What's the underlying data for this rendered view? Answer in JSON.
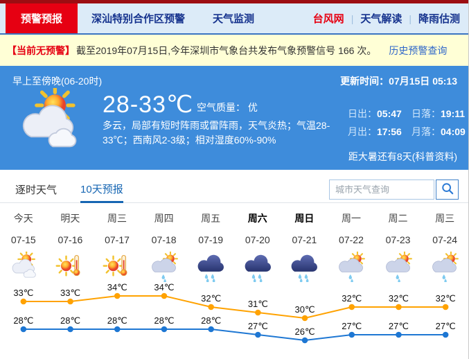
{
  "nav": {
    "tabs": [
      {
        "label": "预警预报",
        "active": true
      },
      {
        "label": "深汕特别合作区预警",
        "active": false
      },
      {
        "label": "天气监测",
        "active": false
      }
    ],
    "links": [
      {
        "label": "台风网",
        "red": true
      },
      {
        "label": "天气解读",
        "red": false
      },
      {
        "label": "降雨估测",
        "red": false
      }
    ]
  },
  "notice": {
    "badge": "【当前无预警】",
    "text": "截至2019年07月15日,今年深圳市气象台共发布气象预警信号 166 次。",
    "link": "历史预警查询"
  },
  "current": {
    "period": "早上至傍晚(06-20时)",
    "icon": "partly-cloudy",
    "temp_range": "28-33℃",
    "air_quality": "空气质量： 优",
    "description": "多云，局部有短时阵雨或雷阵雨，天气炎热；气温28-33℃；西南风2-3级；相对湿度60%-90%",
    "update": "更新时间：07月15日 05:13",
    "sun_moon": [
      [
        {
          "label": "日出：",
          "value": "05:47"
        },
        {
          "label": "日落：",
          "value": "19:11"
        }
      ],
      [
        {
          "label": "月出：",
          "value": "17:56"
        },
        {
          "label": "月落：",
          "value": "04:09"
        }
      ]
    ],
    "solar_term": "距大暑还有8天(科普资料)"
  },
  "view_tabs": [
    {
      "label": "逐时天气",
      "active": false
    },
    {
      "label": "10天预报",
      "active": true
    }
  ],
  "search": {
    "placeholder": "城市天气查询"
  },
  "chart_data": {
    "type": "line",
    "title": "10天预报",
    "categories": [
      "今天",
      "明天",
      "周三",
      "周四",
      "周五",
      "周六",
      "周日",
      "周一",
      "周二",
      "周三"
    ],
    "dates": [
      "07-15",
      "07-16",
      "07-17",
      "07-18",
      "07-19",
      "07-20",
      "07-21",
      "07-22",
      "07-23",
      "07-24"
    ],
    "bold_days": [
      5,
      6
    ],
    "icons": [
      "partly-cloudy",
      "hot",
      "hot",
      "shower-sun",
      "rain",
      "rain",
      "rain",
      "shower-sun",
      "shower-sun",
      "shower-sun"
    ],
    "unit": "℃",
    "series": [
      {
        "name": "high",
        "color": "#ffa200",
        "values": [
          33,
          33,
          34,
          34,
          32,
          31,
          30,
          32,
          32,
          32
        ]
      },
      {
        "name": "low",
        "color": "#1e77d3",
        "values": [
          28,
          28,
          28,
          28,
          28,
          27,
          26,
          27,
          27,
          27
        ]
      }
    ],
    "ylim": [
      25,
      35
    ],
    "grid": false,
    "legend": "none"
  },
  "colors": {
    "accent_red": "#e60012",
    "nav_blue": "#16338e",
    "hero_blue": "#3e8cdb",
    "high_line": "#ffa200",
    "low_line": "#1e77d3"
  }
}
